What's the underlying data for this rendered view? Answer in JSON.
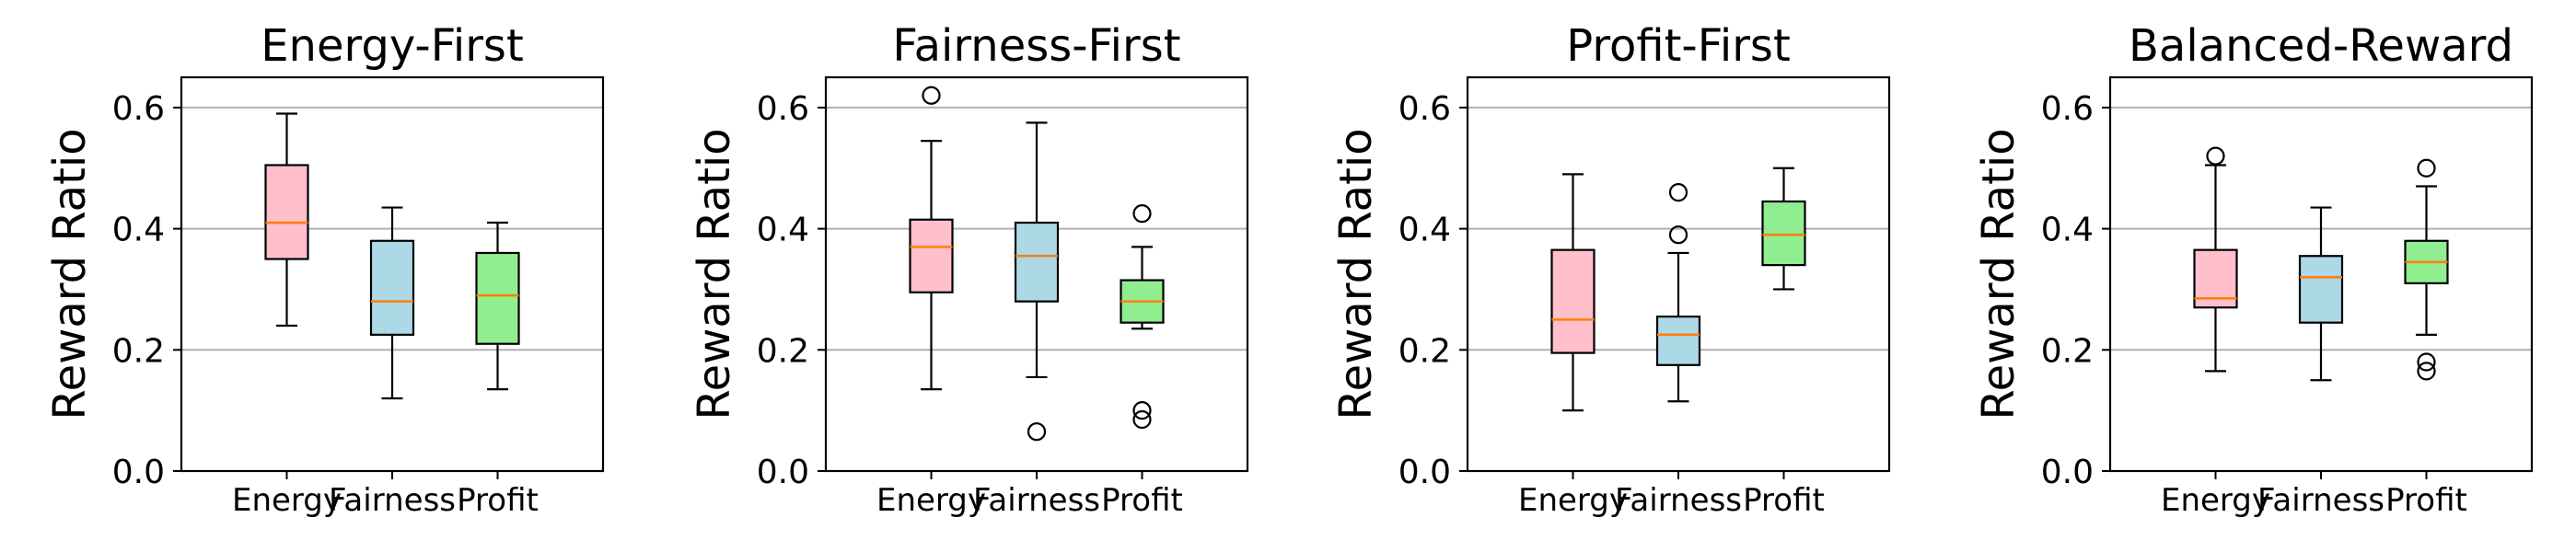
{
  "chart_data": [
    {
      "type": "boxplot",
      "title": "Energy-First",
      "ylabel": "Reward Ratio",
      "ylim": [
        0.0,
        0.65
      ],
      "yticks": [
        "0.0",
        "0.2",
        "0.4",
        "0.6"
      ],
      "ytick_values": [
        0.0,
        0.2,
        0.4,
        0.6
      ],
      "grid": "y",
      "categories": [
        "Energy",
        "Fairness",
        "Profit"
      ],
      "colors": [
        "#ffc0cb",
        "#add8e6",
        "#90ee90"
      ],
      "median_color": "#ff7f0e",
      "boxes": [
        {
          "whislo": 0.24,
          "q1": 0.35,
          "med": 0.41,
          "q3": 0.505,
          "whishi": 0.59,
          "fliers": []
        },
        {
          "whislo": 0.12,
          "q1": 0.225,
          "med": 0.28,
          "q3": 0.38,
          "whishi": 0.435,
          "fliers": []
        },
        {
          "whislo": 0.135,
          "q1": 0.21,
          "med": 0.29,
          "q3": 0.36,
          "whishi": 0.41,
          "fliers": []
        }
      ]
    },
    {
      "type": "boxplot",
      "title": "Fairness-First",
      "ylabel": "Reward Ratio",
      "ylim": [
        0.0,
        0.65
      ],
      "yticks": [
        "0.0",
        "0.2",
        "0.4",
        "0.6"
      ],
      "ytick_values": [
        0.0,
        0.2,
        0.4,
        0.6
      ],
      "grid": "y",
      "categories": [
        "Energy",
        "Fairness",
        "Profit"
      ],
      "colors": [
        "#ffc0cb",
        "#add8e6",
        "#90ee90"
      ],
      "median_color": "#ff7f0e",
      "boxes": [
        {
          "whislo": 0.135,
          "q1": 0.295,
          "med": 0.37,
          "q3": 0.415,
          "whishi": 0.545,
          "fliers": [
            0.62
          ]
        },
        {
          "whislo": 0.155,
          "q1": 0.28,
          "med": 0.355,
          "q3": 0.41,
          "whishi": 0.575,
          "fliers": [
            0.065
          ]
        },
        {
          "whislo": 0.235,
          "q1": 0.245,
          "med": 0.28,
          "q3": 0.315,
          "whishi": 0.37,
          "fliers": [
            0.425,
            0.1,
            0.085
          ]
        }
      ]
    },
    {
      "type": "boxplot",
      "title": "Profit-First",
      "ylabel": "Reward Ratio",
      "ylim": [
        0.0,
        0.65
      ],
      "yticks": [
        "0.0",
        "0.2",
        "0.4",
        "0.6"
      ],
      "ytick_values": [
        0.0,
        0.2,
        0.4,
        0.6
      ],
      "grid": "y",
      "categories": [
        "Energy",
        "Fairness",
        "Profit"
      ],
      "colors": [
        "#ffc0cb",
        "#add8e6",
        "#90ee90"
      ],
      "median_color": "#ff7f0e",
      "boxes": [
        {
          "whislo": 0.1,
          "q1": 0.195,
          "med": 0.25,
          "q3": 0.365,
          "whishi": 0.49,
          "fliers": []
        },
        {
          "whislo": 0.115,
          "q1": 0.175,
          "med": 0.225,
          "q3": 0.255,
          "whishi": 0.36,
          "fliers": [
            0.46,
            0.39
          ]
        },
        {
          "whislo": 0.3,
          "q1": 0.34,
          "med": 0.39,
          "q3": 0.445,
          "whishi": 0.5,
          "fliers": []
        }
      ]
    },
    {
      "type": "boxplot",
      "title": "Balanced-Reward",
      "ylabel": "Reward Ratio",
      "ylim": [
        0.0,
        0.65
      ],
      "yticks": [
        "0.0",
        "0.2",
        "0.4",
        "0.6"
      ],
      "ytick_values": [
        0.0,
        0.2,
        0.4,
        0.6
      ],
      "grid": "y",
      "categories": [
        "Energy",
        "Fairness",
        "Profit"
      ],
      "colors": [
        "#ffc0cb",
        "#add8e6",
        "#90ee90"
      ],
      "median_color": "#ff7f0e",
      "boxes": [
        {
          "whislo": 0.165,
          "q1": 0.27,
          "med": 0.285,
          "q3": 0.365,
          "whishi": 0.505,
          "fliers": [
            0.52
          ]
        },
        {
          "whislo": 0.15,
          "q1": 0.245,
          "med": 0.32,
          "q3": 0.355,
          "whishi": 0.435,
          "fliers": []
        },
        {
          "whislo": 0.225,
          "q1": 0.31,
          "med": 0.345,
          "q3": 0.38,
          "whishi": 0.47,
          "fliers": [
            0.5,
            0.18,
            0.165
          ]
        }
      ]
    }
  ]
}
